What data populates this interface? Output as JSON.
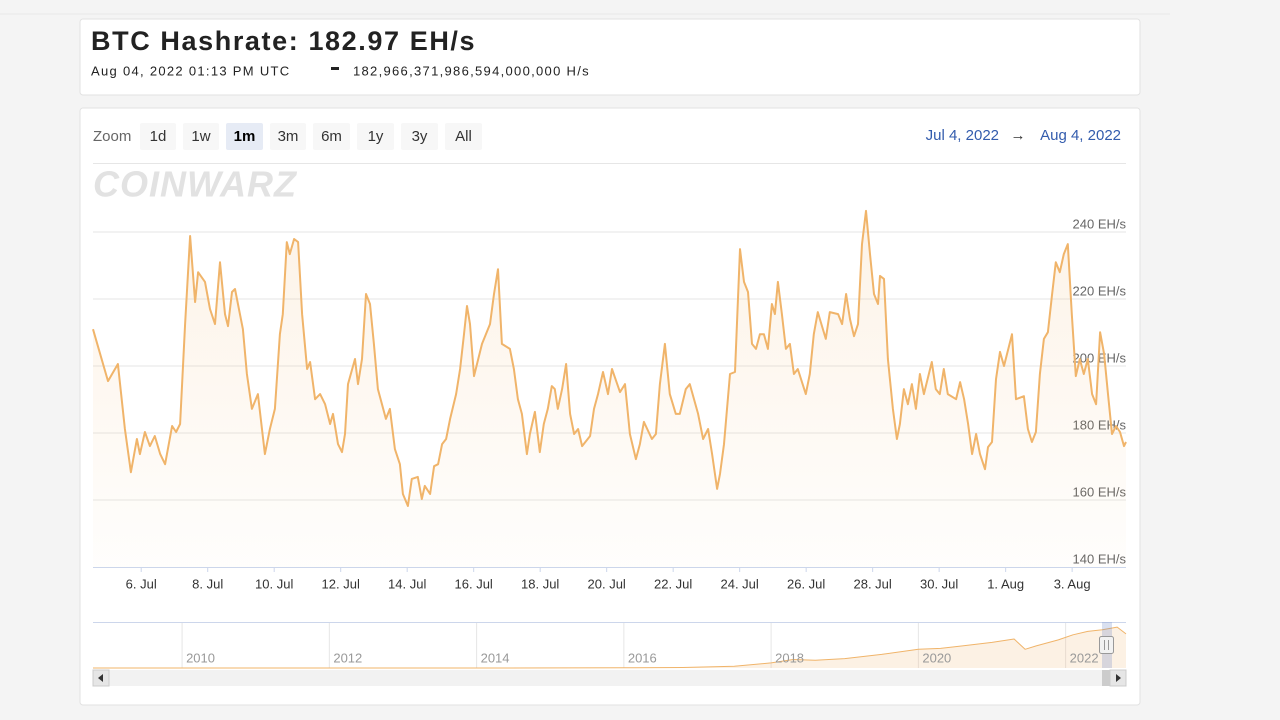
{
  "header": {
    "title": "BTC Hashrate: 182.97 EH/s",
    "timestamp": "Aug 04, 2022 01:13 PM UTC",
    "hashrate_hs": "182,966,371,986,594,000,000 H/s"
  },
  "toolbar": {
    "zoom_label": "Zoom",
    "zoom_buttons": [
      "1d",
      "1w",
      "1m",
      "3m",
      "6m",
      "1y",
      "3y",
      "All"
    ],
    "selected_zoom": "1m",
    "range_from": "Jul 4, 2022",
    "range_arrow": "→",
    "range_to": "Aug 4, 2022"
  },
  "watermark": "COINWARZ",
  "chart_data": [
    {
      "type": "area",
      "color": "#f0b46a",
      "x": [
        4.55,
        5.0,
        5.3,
        5.51,
        5.69,
        5.87,
        5.96,
        6.11,
        6.26,
        6.41,
        6.57,
        6.72,
        6.93,
        7.05,
        7.17,
        7.32,
        7.47,
        7.62,
        7.71,
        7.92,
        8.07,
        8.22,
        8.37,
        8.52,
        8.61,
        8.73,
        8.82,
        9.06,
        9.18,
        9.33,
        9.51,
        9.72,
        9.87,
        10.02,
        10.17,
        10.26,
        10.38,
        10.47,
        10.6,
        10.72,
        10.84,
        10.99,
        11.08,
        11.23,
        11.38,
        11.53,
        11.68,
        11.77,
        11.92,
        12.04,
        12.13,
        12.22,
        12.43,
        12.52,
        12.64,
        12.76,
        12.88,
        13.0,
        13.12,
        13.36,
        13.48,
        13.63,
        13.78,
        13.87,
        14.02,
        14.14,
        14.32,
        14.44,
        14.53,
        14.69,
        14.81,
        14.93,
        15.05,
        15.17,
        15.29,
        15.47,
        15.59,
        15.71,
        15.8,
        15.89,
        16.01,
        16.25,
        16.49,
        16.61,
        16.73,
        16.85,
        17.09,
        17.21,
        17.33,
        17.45,
        17.6,
        17.69,
        17.84,
        17.99,
        18.11,
        18.23,
        18.35,
        18.44,
        18.53,
        18.66,
        18.78,
        18.9,
        19.02,
        19.14,
        19.26,
        19.5,
        19.62,
        19.74,
        19.89,
        20.04,
        20.16,
        20.4,
        20.55,
        20.7,
        20.88,
        21.0,
        21.12,
        21.36,
        21.48,
        21.6,
        21.75,
        21.9,
        22.08,
        22.2,
        22.38,
        22.5,
        22.75,
        22.9,
        23.05,
        23.17,
        23.32,
        23.41,
        23.53,
        23.71,
        23.86,
        24.01,
        24.13,
        24.25,
        24.37,
        24.49,
        24.61,
        24.73,
        24.85,
        24.97,
        25.06,
        25.15,
        25.27,
        25.39,
        25.51,
        25.63,
        25.75,
        25.99,
        26.11,
        26.23,
        26.35,
        26.59,
        26.71,
        26.96,
        27.08,
        27.2,
        27.32,
        27.44,
        27.56,
        27.68,
        27.8,
        27.92,
        28.04,
        28.16,
        28.22,
        28.34,
        28.46,
        28.61,
        28.73,
        28.82,
        28.94,
        29.06,
        29.18,
        29.3,
        29.42,
        29.54,
        29.78,
        29.9,
        30.02,
        30.14,
        30.26,
        30.51,
        30.63,
        30.75,
        30.87,
        30.99,
        31.11,
        31.23,
        31.38,
        31.47,
        31.59,
        31.71,
        31.83,
        31.95,
        32.19,
        32.31,
        32.55,
        32.67,
        32.79,
        32.91,
        33.03,
        33.15,
        33.27,
        33.39,
        33.51,
        33.63,
        33.75,
        33.87,
        33.99,
        34.11,
        34.23,
        34.35,
        34.47,
        34.6,
        34.72,
        34.84,
        34.96,
        35.08,
        35.2,
        35.32,
        35.44,
        35.56,
        35.62
      ],
      "values": [
        211.0,
        195.5,
        200.6,
        181.2,
        168.3,
        178.2,
        173.7,
        180.3,
        176.1,
        179.1,
        173.7,
        170.7,
        182.1,
        180.3,
        182.7,
        212.5,
        238.8,
        219.1,
        228.0,
        225.1,
        217.0,
        212.5,
        231.0,
        215.5,
        211.9,
        222.1,
        223.0,
        211.0,
        197.6,
        187.2,
        191.6,
        173.7,
        181.2,
        187.2,
        209.5,
        215.5,
        237.0,
        233.4,
        237.9,
        237.0,
        215.5,
        199.1,
        201.2,
        190.1,
        191.6,
        188.6,
        182.7,
        185.7,
        176.7,
        174.3,
        179.7,
        194.6,
        202.1,
        194.6,
        202.1,
        221.5,
        218.5,
        206.6,
        193.1,
        184.2,
        187.2,
        175.2,
        170.7,
        161.8,
        158.2,
        166.3,
        166.9,
        160.3,
        164.2,
        161.8,
        170.1,
        170.7,
        176.7,
        178.2,
        184.2,
        191.6,
        199.1,
        209.5,
        217.9,
        212.5,
        197.0,
        206.6,
        212.5,
        221.5,
        228.9,
        206.6,
        205.1,
        199.1,
        190.1,
        185.7,
        173.7,
        179.7,
        186.3,
        174.3,
        182.7,
        187.2,
        194.0,
        193.1,
        187.2,
        193.1,
        200.6,
        185.7,
        179.7,
        181.2,
        176.1,
        179.1,
        187.2,
        191.6,
        198.2,
        191.6,
        199.1,
        192.2,
        194.6,
        179.7,
        172.2,
        176.7,
        183.3,
        178.2,
        179.7,
        194.6,
        206.6,
        191.6,
        185.7,
        185.7,
        193.1,
        194.6,
        185.7,
        178.2,
        181.2,
        173.7,
        163.3,
        167.8,
        176.7,
        197.6,
        198.2,
        234.9,
        225.1,
        222.1,
        206.6,
        205.1,
        209.5,
        209.5,
        205.1,
        218.5,
        215.5,
        225.1,
        215.5,
        205.1,
        206.6,
        197.6,
        199.1,
        191.6,
        197.6,
        209.5,
        216.1,
        208.1,
        216.1,
        215.5,
        212.5,
        221.5,
        214.0,
        208.9,
        212.5,
        236.4,
        246.3,
        233.4,
        221.5,
        218.5,
        226.9,
        226.0,
        202.1,
        187.2,
        178.2,
        182.7,
        193.1,
        188.6,
        194.6,
        187.2,
        197.6,
        191.6,
        201.2,
        193.1,
        191.6,
        199.1,
        191.6,
        190.1,
        195.2,
        190.1,
        182.7,
        173.7,
        179.7,
        173.7,
        169.2,
        175.8,
        177.3,
        196.1,
        204.2,
        200.0,
        209.5,
        190.1,
        191.0,
        181.2,
        177.3,
        180.3,
        197.6,
        208.1,
        210.1,
        220.9,
        231.0,
        228.0,
        233.4,
        236.4,
        215.5,
        197.0,
        202.1,
        197.6,
        202.1,
        191.6,
        188.6,
        210.1,
        203.6,
        191.6,
        179.7,
        182.1,
        180.3,
        176.1,
        177.3
      ],
      "xlim": [
        4.55,
        35.62
      ],
      "xticks": [
        {
          "value": 6,
          "label": "6. Jul"
        },
        {
          "value": 8,
          "label": "8. Jul"
        },
        {
          "value": 10,
          "label": "10. Jul"
        },
        {
          "value": 12,
          "label": "12. Jul"
        },
        {
          "value": 14,
          "label": "14. Jul"
        },
        {
          "value": 16,
          "label": "16. Jul"
        },
        {
          "value": 18,
          "label": "18. Jul"
        },
        {
          "value": 20,
          "label": "20. Jul"
        },
        {
          "value": 22,
          "label": "22. Jul"
        },
        {
          "value": 24,
          "label": "24. Jul"
        },
        {
          "value": 26,
          "label": "26. Jul"
        },
        {
          "value": 28,
          "label": "28. Jul"
        },
        {
          "value": 30,
          "label": "30. Jul"
        },
        {
          "value": 32,
          "label": "1. Aug"
        },
        {
          "value": 34,
          "label": "3. Aug"
        }
      ],
      "ylim": [
        140,
        260.6
      ],
      "yticks": [
        {
          "value": 140,
          "label": "140 EH/s"
        },
        {
          "value": 160,
          "label": "160 EH/s"
        },
        {
          "value": 180,
          "label": "180 EH/s"
        },
        {
          "value": 200,
          "label": "200 EH/s"
        },
        {
          "value": 220,
          "label": "220 EH/s"
        },
        {
          "value": 240,
          "label": "240 EH/s"
        }
      ],
      "grid": true
    },
    {
      "type": "area",
      "color": "#f0b46a",
      "x": [
        2008.79,
        2014,
        2016,
        2016.8,
        2017.5,
        2018,
        2018.3,
        2018.6,
        2019,
        2019.5,
        2020,
        2020.3,
        2020.6,
        2021,
        2021.3,
        2021.45,
        2021.6,
        2021.9,
        2022.1,
        2022.3,
        2022.5,
        2022.7,
        2022.82
      ],
      "values": [
        0,
        0.1,
        1,
        3,
        10,
        30,
        50,
        45,
        55,
        80,
        110,
        115,
        130,
        150,
        170,
        110,
        130,
        165,
        195,
        215,
        225,
        240,
        200
      ],
      "xlim": [
        2008.79,
        2022.82
      ],
      "xticks": [
        2010,
        2012,
        2014,
        2016,
        2018,
        2020,
        2022
      ],
      "ylim": [
        0,
        270
      ],
      "grid": true
    }
  ]
}
